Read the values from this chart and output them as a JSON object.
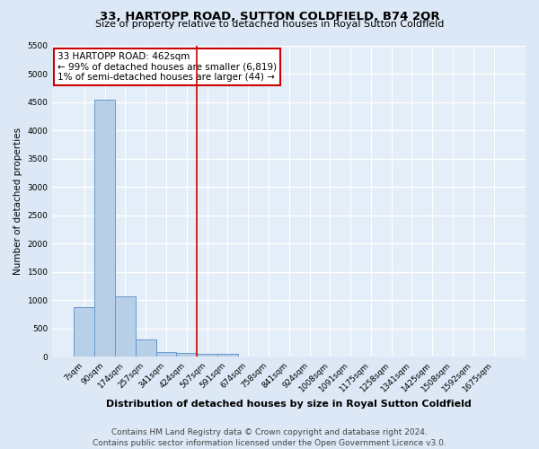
{
  "title": "33, HARTOPP ROAD, SUTTON COLDFIELD, B74 2QR",
  "subtitle": "Size of property relative to detached houses in Royal Sutton Coldfield",
  "xlabel": "Distribution of detached houses by size in Royal Sutton Coldfield",
  "ylabel": "Number of detached properties",
  "footer_line1": "Contains HM Land Registry data © Crown copyright and database right 2024.",
  "footer_line2": "Contains public sector information licensed under the Open Government Licence v3.0.",
  "categories": [
    "7sqm",
    "90sqm",
    "174sqm",
    "257sqm",
    "341sqm",
    "424sqm",
    "507sqm",
    "591sqm",
    "674sqm",
    "758sqm",
    "841sqm",
    "924sqm",
    "1008sqm",
    "1091sqm",
    "1175sqm",
    "1258sqm",
    "1341sqm",
    "1425sqm",
    "1508sqm",
    "1592sqm",
    "1675sqm"
  ],
  "values": [
    880,
    4540,
    1060,
    300,
    85,
    70,
    50,
    50,
    0,
    0,
    0,
    0,
    0,
    0,
    0,
    0,
    0,
    0,
    0,
    0,
    0
  ],
  "bar_color": "#b8cfe8",
  "bar_edge_color": "#6699cc",
  "ylim": [
    0,
    5500
  ],
  "yticks": [
    0,
    500,
    1000,
    1500,
    2000,
    2500,
    3000,
    3500,
    4000,
    4500,
    5000,
    5500
  ],
  "red_line_index": 5.5,
  "annotation_text": "33 HARTOPP ROAD: 462sqm\n← 99% of detached houses are smaller (6,819)\n1% of semi-detached houses are larger (44) →",
  "annotation_box_color": "#ffffff",
  "annotation_box_edge_color": "#cc0000",
  "bg_color": "#dce8f5",
  "plot_bg_color": "#e4eef8",
  "grid_color": "#ffffff",
  "title_fontsize": 9.5,
  "subtitle_fontsize": 8,
  "xlabel_fontsize": 8,
  "ylabel_fontsize": 7.5,
  "tick_fontsize": 6.5,
  "annotation_fontsize": 7.5,
  "footer_fontsize": 6.5
}
